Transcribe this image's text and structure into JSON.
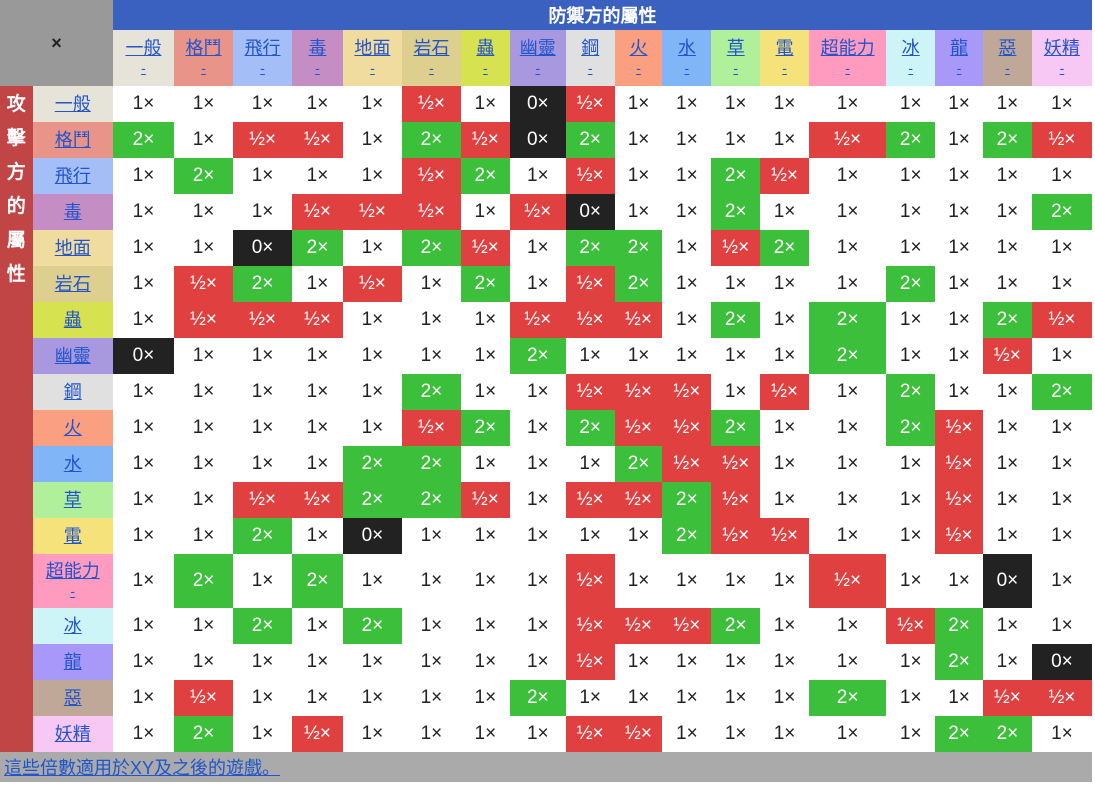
{
  "corner": "×",
  "defender_title": "防禦方的屬性",
  "attacker_title": "攻擊方的屬性",
  "types": [
    {
      "name": "一般",
      "color": "#e6e4d8"
    },
    {
      "name": "格鬥",
      "color": "#e89488"
    },
    {
      "name": "飛行",
      "color": "#a4bff8"
    },
    {
      "name": "毒",
      "color": "#c48ec4"
    },
    {
      "name": "地面",
      "color": "#f1dca0"
    },
    {
      "name": "岩石",
      "color": "#ddd08f"
    },
    {
      "name": "蟲",
      "color": "#d6e250"
    },
    {
      "name": "幽靈",
      "color": "#a898e0"
    },
    {
      "name": "鋼",
      "color": "#e0e0e0"
    },
    {
      "name": "火",
      "color": "#fa9f80"
    },
    {
      "name": "水",
      "color": "#80b6f8"
    },
    {
      "name": "草",
      "color": "#b0f09a"
    },
    {
      "name": "電",
      "color": "#f5e27a"
    },
    {
      "name": "超能力",
      "color": "#ff9bbe"
    },
    {
      "name": "冰",
      "color": "#cdf5f8"
    },
    {
      "name": "龍",
      "color": "#a898f8"
    },
    {
      "name": "惡",
      "color": "#c0a898"
    },
    {
      "name": "妖精",
      "color": "#f8c8f4"
    }
  ],
  "labels": {
    "normal": "1×",
    "super": "2×",
    "half": "½×",
    "immune": "0×"
  },
  "matrix": [
    [
      "1",
      "1",
      "1",
      "1",
      "1",
      "h",
      "1",
      "0",
      "h",
      "1",
      "1",
      "1",
      "1",
      "1",
      "1",
      "1",
      "1",
      "1"
    ],
    [
      "2",
      "1",
      "h",
      "h",
      "1",
      "2",
      "h",
      "0",
      "2",
      "1",
      "1",
      "1",
      "1",
      "h",
      "2",
      "1",
      "2",
      "h"
    ],
    [
      "1",
      "2",
      "1",
      "1",
      "1",
      "h",
      "2",
      "1",
      "h",
      "1",
      "1",
      "2",
      "h",
      "1",
      "1",
      "1",
      "1",
      "1"
    ],
    [
      "1",
      "1",
      "1",
      "h",
      "h",
      "h",
      "1",
      "h",
      "0",
      "1",
      "1",
      "2",
      "1",
      "1",
      "1",
      "1",
      "1",
      "2"
    ],
    [
      "1",
      "1",
      "0",
      "2",
      "1",
      "2",
      "h",
      "1",
      "2",
      "2",
      "1",
      "h",
      "2",
      "1",
      "1",
      "1",
      "1",
      "1"
    ],
    [
      "1",
      "h",
      "2",
      "1",
      "h",
      "1",
      "2",
      "1",
      "h",
      "2",
      "1",
      "1",
      "1",
      "1",
      "2",
      "1",
      "1",
      "1"
    ],
    [
      "1",
      "h",
      "h",
      "h",
      "1",
      "1",
      "1",
      "h",
      "h",
      "h",
      "1",
      "2",
      "1",
      "2",
      "1",
      "1",
      "2",
      "h"
    ],
    [
      "0",
      "1",
      "1",
      "1",
      "1",
      "1",
      "1",
      "2",
      "1",
      "1",
      "1",
      "1",
      "1",
      "2",
      "1",
      "1",
      "h",
      "1"
    ],
    [
      "1",
      "1",
      "1",
      "1",
      "1",
      "2",
      "1",
      "1",
      "h",
      "h",
      "h",
      "1",
      "h",
      "1",
      "2",
      "1",
      "1",
      "2"
    ],
    [
      "1",
      "1",
      "1",
      "1",
      "1",
      "h",
      "2",
      "1",
      "2",
      "h",
      "h",
      "2",
      "1",
      "1",
      "2",
      "h",
      "1",
      "1"
    ],
    [
      "1",
      "1",
      "1",
      "1",
      "2",
      "2",
      "1",
      "1",
      "1",
      "2",
      "h",
      "h",
      "1",
      "1",
      "1",
      "h",
      "1",
      "1"
    ],
    [
      "1",
      "1",
      "h",
      "h",
      "2",
      "2",
      "h",
      "1",
      "h",
      "h",
      "2",
      "h",
      "1",
      "1",
      "1",
      "h",
      "1",
      "1"
    ],
    [
      "1",
      "1",
      "2",
      "1",
      "0",
      "1",
      "1",
      "1",
      "1",
      "1",
      "2",
      "h",
      "h",
      "1",
      "1",
      "h",
      "1",
      "1"
    ],
    [
      "1",
      "2",
      "1",
      "2",
      "1",
      "1",
      "1",
      "1",
      "h",
      "1",
      "1",
      "1",
      "1",
      "h",
      "1",
      "1",
      "0",
      "1"
    ],
    [
      "1",
      "1",
      "2",
      "1",
      "2",
      "1",
      "1",
      "1",
      "h",
      "h",
      "h",
      "2",
      "1",
      "1",
      "h",
      "2",
      "1",
      "1"
    ],
    [
      "1",
      "1",
      "1",
      "1",
      "1",
      "1",
      "1",
      "1",
      "h",
      "1",
      "1",
      "1",
      "1",
      "1",
      "1",
      "2",
      "1",
      "0"
    ],
    [
      "1",
      "h",
      "1",
      "1",
      "1",
      "1",
      "1",
      "2",
      "1",
      "1",
      "1",
      "1",
      "1",
      "2",
      "1",
      "1",
      "h",
      "h"
    ],
    [
      "1",
      "2",
      "1",
      "h",
      "1",
      "1",
      "1",
      "1",
      "h",
      "h",
      "1",
      "1",
      "1",
      "1",
      "1",
      "2",
      "2",
      "1"
    ]
  ],
  "footnote": "這些倍數適用於XY及之後的遊戲。"
}
